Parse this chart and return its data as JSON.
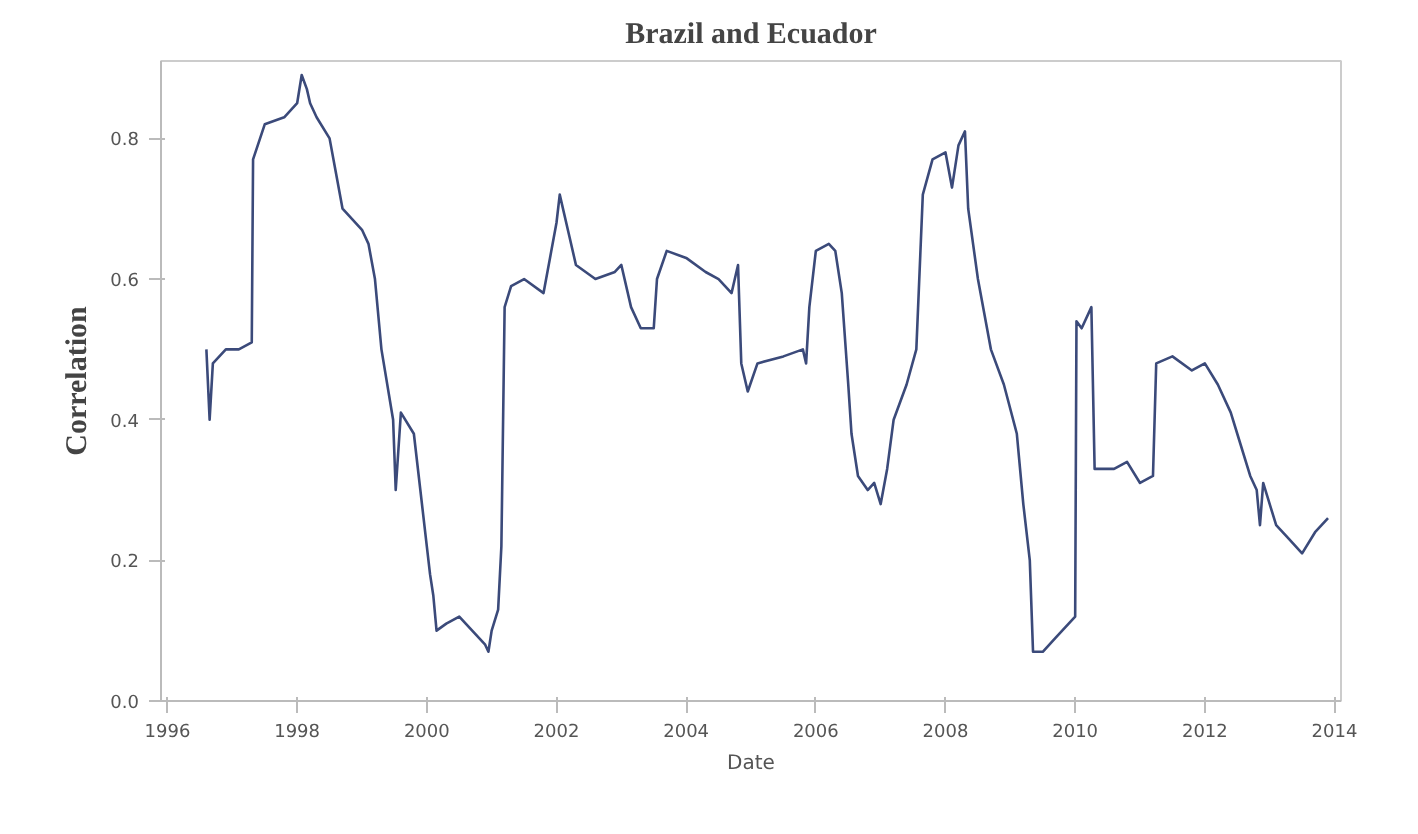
{
  "chart_data": {
    "type": "line",
    "title": "Brazil and Ecuador",
    "xlabel": "Date",
    "ylabel": "Correlation",
    "x": [
      1996.6,
      1996.65,
      1996.7,
      1996.9,
      1997.1,
      1997.3,
      1997.32,
      1997.5,
      1997.8,
      1998.0,
      1998.07,
      1998.15,
      1998.2,
      1998.3,
      1998.5,
      1998.6,
      1998.7,
      1999.0,
      1999.1,
      1999.2,
      1999.3,
      1999.48,
      1999.52,
      1999.6,
      1999.8,
      1999.9,
      2000.0,
      2000.05,
      2000.1,
      2000.15,
      2000.3,
      2000.5,
      2000.7,
      2000.9,
      2000.95,
      2001.0,
      2001.1,
      2001.15,
      2001.2,
      2001.3,
      2001.5,
      2001.8,
      2001.9,
      2002.0,
      2002.05,
      2002.2,
      2002.3,
      2002.6,
      2002.9,
      2003.0,
      2003.15,
      2003.3,
      2003.5,
      2003.55,
      2003.7,
      2004.0,
      2004.3,
      2004.5,
      2004.7,
      2004.75,
      2004.8,
      2004.85,
      2004.95,
      2005.1,
      2005.5,
      2005.8,
      2005.85,
      2005.9,
      2006.0,
      2006.2,
      2006.3,
      2006.4,
      2006.5,
      2006.55,
      2006.65,
      2006.8,
      2006.9,
      2007.0,
      2007.1,
      2007.2,
      2007.4,
      2007.55,
      2007.65,
      2007.8,
      2008.0,
      2008.1,
      2008.2,
      2008.3,
      2008.35,
      2008.5,
      2008.7,
      2008.9,
      2009.1,
      2009.2,
      2009.3,
      2009.35,
      2009.5,
      2009.7,
      2009.9,
      2010.0,
      2010.02,
      2010.1,
      2010.25,
      2010.3,
      2010.6,
      2010.8,
      2011.0,
      2011.2,
      2011.25,
      2011.5,
      2011.8,
      2012.0,
      2012.2,
      2012.4,
      2012.5,
      2012.7,
      2012.8,
      2012.85,
      2012.9,
      2013.1,
      2013.3,
      2013.5,
      2013.7,
      2013.9
    ],
    "values": [
      0.5,
      0.4,
      0.48,
      0.5,
      0.5,
      0.51,
      0.77,
      0.82,
      0.83,
      0.85,
      0.89,
      0.87,
      0.85,
      0.83,
      0.8,
      0.75,
      0.7,
      0.67,
      0.65,
      0.6,
      0.5,
      0.4,
      0.3,
      0.41,
      0.38,
      0.3,
      0.22,
      0.18,
      0.15,
      0.1,
      0.11,
      0.12,
      0.1,
      0.08,
      0.07,
      0.1,
      0.13,
      0.22,
      0.56,
      0.59,
      0.6,
      0.58,
      0.63,
      0.68,
      0.72,
      0.66,
      0.62,
      0.6,
      0.61,
      0.62,
      0.56,
      0.53,
      0.53,
      0.6,
      0.64,
      0.63,
      0.61,
      0.6,
      0.58,
      0.6,
      0.62,
      0.48,
      0.44,
      0.48,
      0.49,
      0.5,
      0.48,
      0.56,
      0.64,
      0.65,
      0.64,
      0.58,
      0.45,
      0.38,
      0.32,
      0.3,
      0.31,
      0.28,
      0.33,
      0.4,
      0.45,
      0.5,
      0.72,
      0.77,
      0.78,
      0.73,
      0.79,
      0.81,
      0.7,
      0.6,
      0.5,
      0.45,
      0.38,
      0.28,
      0.2,
      0.07,
      0.07,
      0.09,
      0.11,
      0.12,
      0.54,
      0.53,
      0.56,
      0.33,
      0.33,
      0.34,
      0.31,
      0.32,
      0.48,
      0.49,
      0.47,
      0.48,
      0.45,
      0.41,
      0.38,
      0.32,
      0.3,
      0.25,
      0.31,
      0.25,
      0.23,
      0.21,
      0.24,
      0.26
    ],
    "color": "#3b4a7a",
    "xlim": [
      1995.9,
      2014.1
    ],
    "ylim": [
      0,
      0.91
    ],
    "xticks": [
      1996,
      1998,
      2000,
      2002,
      2004,
      2006,
      2008,
      2010,
      2012,
      2014
    ],
    "yticks": [
      {
        "value": 0,
        "label": "0.0"
      },
      0.2,
      0.4,
      0.6,
      0.8
    ],
    "grid": false,
    "marker": "none",
    "line_style": "solid"
  }
}
